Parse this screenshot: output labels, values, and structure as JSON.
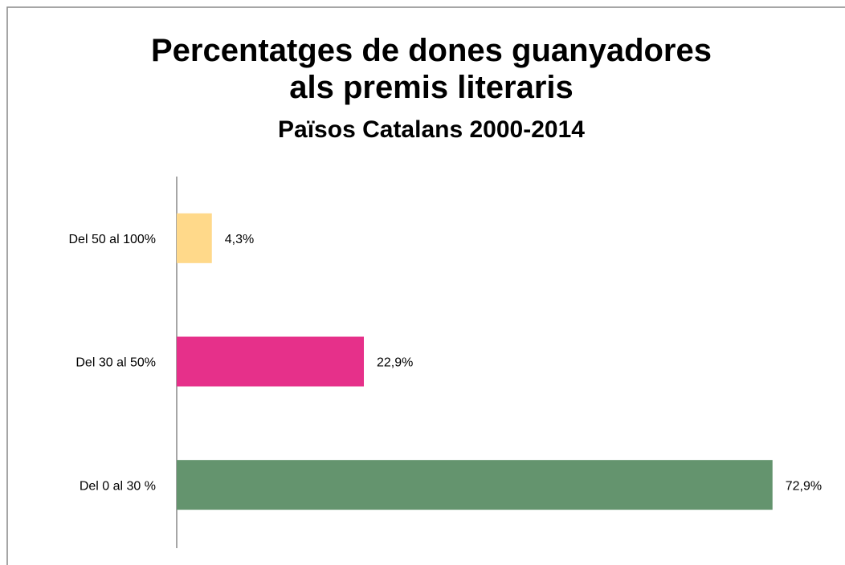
{
  "chart_data": {
    "type": "bar",
    "orientation": "horizontal",
    "title": "Percentatges de dones guanyadores als premis literaris",
    "subtitle": "Països Catalans 2000-2014",
    "categories": [
      "Del 50 al 100%",
      "Del 30 al 50%",
      "Del 0 al 30 %"
    ],
    "values": [
      4.3,
      22.9,
      72.9
    ],
    "value_labels": [
      "4,3%",
      "22,9%",
      "72,9%"
    ],
    "colors": [
      "#ffd98a",
      "#e6308a",
      "#64946e"
    ],
    "xlim": [
      0,
      80
    ]
  }
}
